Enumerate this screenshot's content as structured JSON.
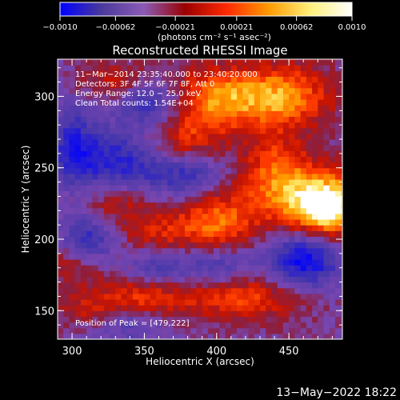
{
  "colorbar": {
    "tick_labels": [
      "−0.0010",
      "−0.00062",
      "−0.00021",
      "0.00021",
      "0.00062",
      "0.0010"
    ],
    "tick_values": [
      -0.001,
      -0.00062,
      -0.00021,
      0.00021,
      0.00062,
      0.001
    ],
    "range": [
      -0.001,
      0.001
    ],
    "units": "(photons cm⁻² s⁻¹ asec⁻²)",
    "stops": [
      "#0000ff",
      "#4b3a9a",
      "#8a5bb7",
      "#9a0000",
      "#ff2a00",
      "#ff9a00",
      "#fff07a",
      "#ffffff"
    ]
  },
  "chart_data": {
    "type": "heatmap",
    "title": "Reconstructed RHESSI Image",
    "xlabel": "Heliocentric X (arcsec)",
    "ylabel": "Heliocentric Y (arcsec)",
    "xlim": [
      290,
      487
    ],
    "ylim": [
      130,
      326
    ],
    "x_ticks": [
      300,
      350,
      400,
      450
    ],
    "y_ticks": [
      150,
      200,
      250,
      300
    ],
    "annotations": [
      "11−Mar−2014 23:35:40.000 to 23:40:20.000",
      "Detectors: 3F 4F 5F 6F 7F 8F, Att 0",
      "Energy Range: 12.0 − 25.0 keV",
      "Clean     Total counts: 1.54E+04"
    ],
    "peak_label": "Position of Peak = [479,222]",
    "peak": [
      479,
      222
    ],
    "sources": [
      {
        "x": 478,
        "y": 222,
        "sx": 16,
        "sy": 14,
        "a": 1.0
      },
      {
        "x": 452,
        "y": 232,
        "sx": 26,
        "sy": 18,
        "a": 0.7
      },
      {
        "x": 445,
        "y": 300,
        "sx": 24,
        "sy": 16,
        "a": 0.8
      },
      {
        "x": 398,
        "y": 298,
        "sx": 22,
        "sy": 16,
        "a": 0.7
      },
      {
        "x": 375,
        "y": 270,
        "sx": 18,
        "sy": 12,
        "a": 0.45
      },
      {
        "x": 400,
        "y": 212,
        "sx": 18,
        "sy": 14,
        "a": 0.6
      },
      {
        "x": 360,
        "y": 205,
        "sx": 20,
        "sy": 12,
        "a": 0.4
      },
      {
        "x": 330,
        "y": 225,
        "sx": 16,
        "sy": 10,
        "a": 0.35
      },
      {
        "x": 350,
        "y": 160,
        "sx": 24,
        "sy": 12,
        "a": 0.5
      },
      {
        "x": 420,
        "y": 160,
        "sx": 30,
        "sy": 12,
        "a": 0.55
      },
      {
        "x": 310,
        "y": 150,
        "sx": 16,
        "sy": 10,
        "a": 0.3
      },
      {
        "x": 330,
        "y": 312,
        "sx": 20,
        "sy": 10,
        "a": 0.35
      },
      {
        "x": 300,
        "y": 185,
        "sx": 14,
        "sy": 12,
        "a": 0.35
      },
      {
        "x": 440,
        "y": 255,
        "sx": 14,
        "sy": 14,
        "a": 0.35
      }
    ],
    "negatives": [
      {
        "x": 330,
        "y": 255,
        "sx": 26,
        "sy": 16,
        "a": 0.6
      },
      {
        "x": 355,
        "y": 295,
        "sx": 16,
        "sy": 12,
        "a": 0.55
      },
      {
        "x": 380,
        "y": 245,
        "sx": 18,
        "sy": 10,
        "a": 0.45
      },
      {
        "x": 300,
        "y": 270,
        "sx": 12,
        "sy": 20,
        "a": 0.45
      },
      {
        "x": 310,
        "y": 200,
        "sx": 14,
        "sy": 12,
        "a": 0.6
      },
      {
        "x": 460,
        "y": 185,
        "sx": 18,
        "sy": 14,
        "a": 0.85
      },
      {
        "x": 360,
        "y": 180,
        "sx": 16,
        "sy": 10,
        "a": 0.5
      },
      {
        "x": 400,
        "y": 180,
        "sx": 16,
        "sy": 10,
        "a": 0.45
      },
      {
        "x": 340,
        "y": 140,
        "sx": 20,
        "sy": 8,
        "a": 0.4
      }
    ]
  },
  "footer_date": "13−May−2022 18:22"
}
